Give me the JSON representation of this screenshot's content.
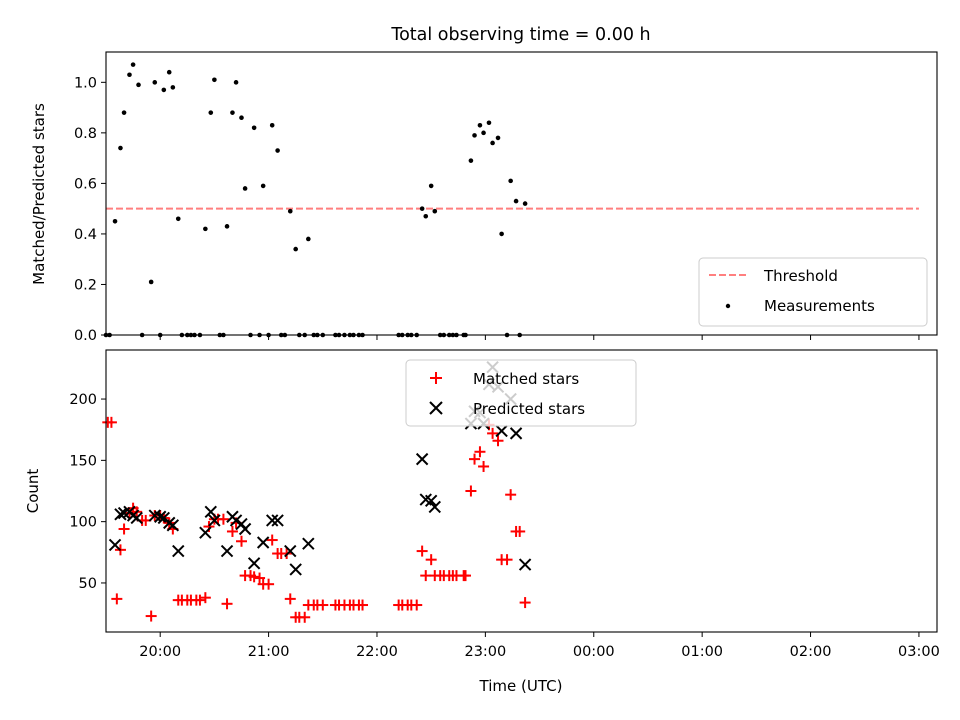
{
  "chart_data": [
    {
      "type": "scatter",
      "title": "Total observing time = 0.00 h",
      "xlabel": "",
      "ylabel": "Matched/Predicted stars",
      "xlim": [
        "19:30",
        "03:10"
      ],
      "ylim": [
        0,
        1.12
      ],
      "yticks": [
        "0.0",
        "0.2",
        "0.4",
        "0.6",
        "0.8",
        "1.0"
      ],
      "xticks": [
        "20:00",
        "21:00",
        "22:00",
        "23:00",
        "00:00",
        "01:00",
        "02:00",
        "03:00"
      ],
      "xtick_labels_shown": false,
      "legend": {
        "position": "lower right",
        "entries": [
          "Threshold",
          "Measurements"
        ]
      },
      "series": [
        {
          "name": "Threshold",
          "style": "dashed line",
          "color": "#ff7f7f",
          "x": [
            "19:30",
            "03:00"
          ],
          "y": [
            0.5,
            0.5
          ]
        },
        {
          "name": "Measurements",
          "style": "dot",
          "color": "#000000",
          "points": [
            [
              "19:30",
              0.0
            ],
            [
              "19:32",
              0.0
            ],
            [
              "19:35",
              0.45
            ],
            [
              "19:38",
              0.74
            ],
            [
              "19:40",
              0.88
            ],
            [
              "19:43",
              1.03
            ],
            [
              "19:45",
              1.07
            ],
            [
              "19:48",
              0.99
            ],
            [
              "19:50",
              0.0
            ],
            [
              "19:55",
              0.21
            ],
            [
              "19:57",
              1.0
            ],
            [
              "20:00",
              0.0
            ],
            [
              "20:02",
              0.97
            ],
            [
              "20:05",
              1.04
            ],
            [
              "20:07",
              0.98
            ],
            [
              "20:10",
              0.46
            ],
            [
              "20:12",
              0.0
            ],
            [
              "20:15",
              0.0
            ],
            [
              "20:17",
              0.0
            ],
            [
              "20:19",
              0.0
            ],
            [
              "20:22",
              0.0
            ],
            [
              "20:25",
              0.42
            ],
            [
              "20:28",
              0.88
            ],
            [
              "20:30",
              1.01
            ],
            [
              "20:33",
              0.0
            ],
            [
              "20:35",
              0.0
            ],
            [
              "20:37",
              0.43
            ],
            [
              "20:40",
              0.88
            ],
            [
              "20:42",
              1.0
            ],
            [
              "20:45",
              0.86
            ],
            [
              "20:47",
              0.58
            ],
            [
              "20:50",
              0.0
            ],
            [
              "20:52",
              0.82
            ],
            [
              "20:55",
              0.0
            ],
            [
              "20:57",
              0.59
            ],
            [
              "21:00",
              0.0
            ],
            [
              "21:02",
              0.83
            ],
            [
              "21:05",
              0.73
            ],
            [
              "21:07",
              0.0
            ],
            [
              "21:09",
              0.0
            ],
            [
              "21:12",
              0.49
            ],
            [
              "21:15",
              0.34
            ],
            [
              "21:17",
              0.0
            ],
            [
              "21:20",
              0.0
            ],
            [
              "21:22",
              0.38
            ],
            [
              "21:25",
              0.0
            ],
            [
              "21:27",
              0.0
            ],
            [
              "21:30",
              0.0
            ],
            [
              "21:37",
              0.0
            ],
            [
              "21:39",
              0.0
            ],
            [
              "21:42",
              0.0
            ],
            [
              "21:45",
              0.0
            ],
            [
              "21:47",
              0.0
            ],
            [
              "21:50",
              0.0
            ],
            [
              "21:52",
              0.0
            ],
            [
              "22:12",
              0.0
            ],
            [
              "22:14",
              0.0
            ],
            [
              "22:17",
              0.0
            ],
            [
              "22:19",
              0.0
            ],
            [
              "22:22",
              0.0
            ],
            [
              "22:25",
              0.5
            ],
            [
              "22:27",
              0.47
            ],
            [
              "22:30",
              0.59
            ],
            [
              "22:32",
              0.49
            ],
            [
              "22:35",
              0.0
            ],
            [
              "22:37",
              0.0
            ],
            [
              "22:40",
              0.0
            ],
            [
              "22:42",
              0.0
            ],
            [
              "22:44",
              0.0
            ],
            [
              "22:48",
              0.0
            ],
            [
              "22:49",
              0.0
            ],
            [
              "22:52",
              0.69
            ],
            [
              "22:54",
              0.79
            ],
            [
              "22:57",
              0.83
            ],
            [
              "22:59",
              0.8
            ],
            [
              "23:02",
              0.84
            ],
            [
              "23:04",
              0.76
            ],
            [
              "23:07",
              0.78
            ],
            [
              "23:09",
              0.4
            ],
            [
              "23:12",
              0.0
            ],
            [
              "23:14",
              0.61
            ],
            [
              "23:17",
              0.53
            ],
            [
              "23:19",
              0.0
            ],
            [
              "23:22",
              0.52
            ]
          ]
        }
      ]
    },
    {
      "type": "scatter",
      "title": "",
      "xlabel": "Time (UTC)",
      "ylabel": "Count",
      "xlim": [
        "19:30",
        "03:10"
      ],
      "ylim": [
        10,
        240
      ],
      "yticks": [
        "50",
        "100",
        "150",
        "200"
      ],
      "xticks": [
        "20:00",
        "21:00",
        "22:00",
        "23:00",
        "00:00",
        "01:00",
        "02:00",
        "03:00"
      ],
      "legend": {
        "position": "upper center",
        "entries": [
          "Matched stars",
          "Predicted stars"
        ]
      },
      "series": [
        {
          "name": "Matched stars",
          "marker": "plus",
          "color": "#ff0000",
          "points": [
            [
              "19:31",
              181
            ],
            [
              "19:33",
              181
            ],
            [
              "19:36",
              37
            ],
            [
              "19:38",
              77
            ],
            [
              "19:40",
              94
            ],
            [
              "19:43",
              107
            ],
            [
              "19:45",
              111
            ],
            [
              "19:47",
              108
            ],
            [
              "19:50",
              101
            ],
            [
              "19:52",
              101
            ],
            [
              "19:55",
              23
            ],
            [
              "19:57",
              105
            ],
            [
              "20:00",
              105
            ],
            [
              "20:02",
              103
            ],
            [
              "20:05",
              99
            ],
            [
              "20:07",
              94
            ],
            [
              "20:10",
              36
            ],
            [
              "20:12",
              36
            ],
            [
              "20:15",
              36
            ],
            [
              "20:17",
              36
            ],
            [
              "20:20",
              36
            ],
            [
              "20:22",
              36
            ],
            [
              "20:25",
              38
            ],
            [
              "20:27",
              96
            ],
            [
              "20:30",
              102
            ],
            [
              "20:32",
              102
            ],
            [
              "20:35",
              102
            ],
            [
              "20:37",
              33
            ],
            [
              "20:40",
              92
            ],
            [
              "20:42",
              99
            ],
            [
              "20:45",
              84
            ],
            [
              "20:47",
              56
            ],
            [
              "20:50",
              56
            ],
            [
              "20:52",
              55
            ],
            [
              "20:55",
              54
            ],
            [
              "20:57",
              49
            ],
            [
              "21:00",
              49
            ],
            [
              "21:02",
              85
            ],
            [
              "21:05",
              74
            ],
            [
              "21:07",
              74
            ],
            [
              "21:10",
              74
            ],
            [
              "21:12",
              37
            ],
            [
              "21:15",
              22
            ],
            [
              "21:17",
              22
            ],
            [
              "21:20",
              22
            ],
            [
              "21:22",
              32
            ],
            [
              "21:25",
              32
            ],
            [
              "21:27",
              32
            ],
            [
              "21:30",
              32
            ],
            [
              "21:37",
              32
            ],
            [
              "21:39",
              32
            ],
            [
              "21:42",
              32
            ],
            [
              "21:45",
              32
            ],
            [
              "21:47",
              32
            ],
            [
              "21:50",
              32
            ],
            [
              "21:52",
              32
            ],
            [
              "22:12",
              32
            ],
            [
              "22:14",
              32
            ],
            [
              "22:17",
              32
            ],
            [
              "22:19",
              32
            ],
            [
              "22:22",
              32
            ],
            [
              "22:25",
              76
            ],
            [
              "22:27",
              56
            ],
            [
              "22:30",
              69
            ],
            [
              "22:32",
              56
            ],
            [
              "22:35",
              56
            ],
            [
              "22:37",
              56
            ],
            [
              "22:40",
              56
            ],
            [
              "22:42",
              56
            ],
            [
              "22:44",
              56
            ],
            [
              "22:48",
              56
            ],
            [
              "22:49",
              56
            ],
            [
              "22:52",
              125
            ],
            [
              "22:54",
              151
            ],
            [
              "22:57",
              157
            ],
            [
              "22:59",
              145
            ],
            [
              "23:02",
              179
            ],
            [
              "23:04",
              172
            ],
            [
              "23:07",
              166
            ],
            [
              "23:09",
              69
            ],
            [
              "23:12",
              69
            ],
            [
              "23:14",
              122
            ],
            [
              "23:17",
              92
            ],
            [
              "23:19",
              92
            ],
            [
              "23:22",
              34
            ]
          ]
        },
        {
          "name": "Predicted stars",
          "marker": "x",
          "color": "#000000",
          "points": [
            [
              "19:35",
              81
            ],
            [
              "19:38",
              106
            ],
            [
              "19:40",
              107
            ],
            [
              "19:43",
              108
            ],
            [
              "19:45",
              105
            ],
            [
              "19:47",
              103
            ],
            [
              "19:57",
              105
            ],
            [
              "20:00",
              104
            ],
            [
              "20:02",
              103
            ],
            [
              "20:05",
              99
            ],
            [
              "20:07",
              97
            ],
            [
              "20:10",
              76
            ],
            [
              "20:25",
              91
            ],
            [
              "20:28",
              108
            ],
            [
              "20:30",
              101
            ],
            [
              "20:37",
              76
            ],
            [
              "20:40",
              104
            ],
            [
              "20:42",
              101
            ],
            [
              "20:45",
              98
            ],
            [
              "20:47",
              94
            ],
            [
              "20:52",
              66
            ],
            [
              "20:57",
              83
            ],
            [
              "21:02",
              101
            ],
            [
              "21:05",
              101
            ],
            [
              "21:12",
              76
            ],
            [
              "21:15",
              61
            ],
            [
              "21:22",
              82
            ],
            [
              "22:25",
              151
            ],
            [
              "22:27",
              118
            ],
            [
              "22:30",
              117
            ],
            [
              "22:32",
              112
            ],
            [
              "22:52",
              180
            ],
            [
              "22:54",
              190
            ],
            [
              "22:57",
              189
            ],
            [
              "22:59",
              180
            ],
            [
              "23:02",
              212
            ],
            [
              "23:04",
              226
            ],
            [
              "23:07",
              210
            ],
            [
              "23:09",
              174
            ],
            [
              "23:14",
              200
            ],
            [
              "23:17",
              172
            ],
            [
              "23:22",
              65
            ]
          ]
        }
      ]
    }
  ]
}
